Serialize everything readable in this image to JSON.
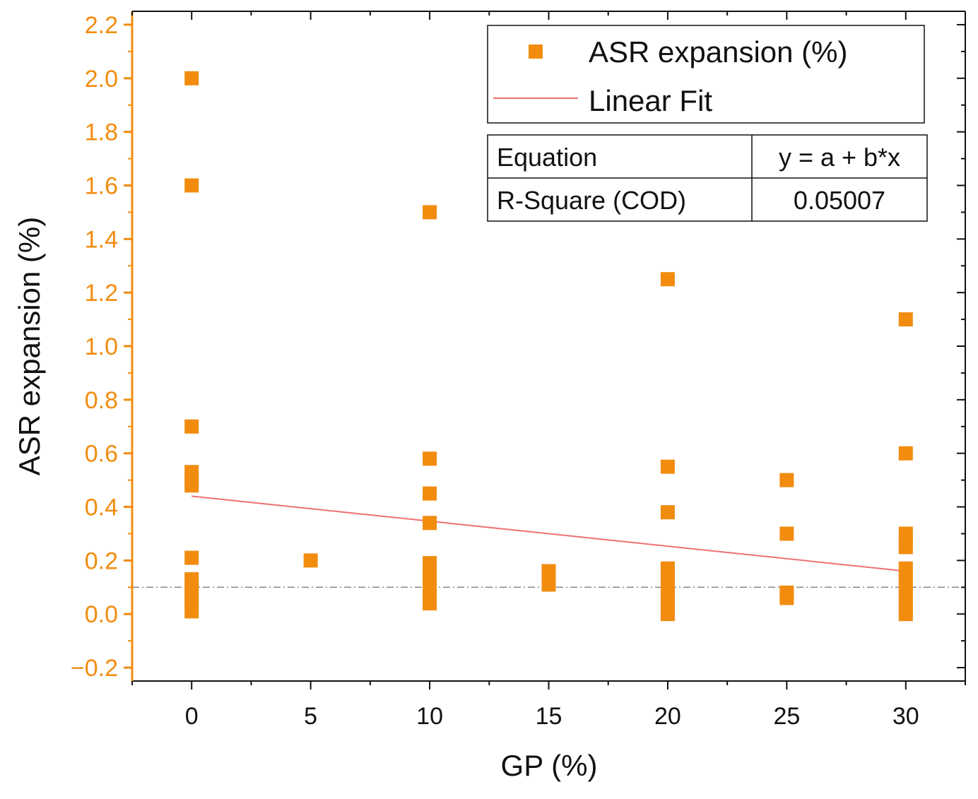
{
  "chart_data": {
    "type": "scatter",
    "title": "",
    "xlabel": "GP (%)",
    "ylabel": "ASR expansion (%)",
    "xlim": [
      -2.5,
      32.5
    ],
    "ylim": [
      -0.25,
      2.25
    ],
    "xticks": [
      0,
      5,
      10,
      15,
      20,
      25,
      30
    ],
    "xtick_labels": [
      "0",
      "5",
      "10",
      "15",
      "20",
      "25",
      "30"
    ],
    "yticks": [
      -0.2,
      0.0,
      0.2,
      0.4,
      0.6,
      0.8,
      1.0,
      1.2,
      1.4,
      1.6,
      1.8,
      2.0,
      2.2
    ],
    "ytick_labels": [
      "−0.2",
      "0.0",
      "0.2",
      "0.4",
      "0.6",
      "0.8",
      "1.0",
      "1.2",
      "1.4",
      "1.6",
      "1.8",
      "2.0",
      "2.2"
    ],
    "series": [
      {
        "name": "ASR expansion (%)",
        "marker": "square",
        "color": "#F28C0F",
        "points": [
          [
            0,
            2.0
          ],
          [
            0,
            1.6
          ],
          [
            0,
            0.7
          ],
          [
            0,
            0.53
          ],
          [
            0,
            0.5
          ],
          [
            0,
            0.48
          ],
          [
            0,
            0.21
          ],
          [
            0,
            0.13
          ],
          [
            0,
            0.1
          ],
          [
            0,
            0.07
          ],
          [
            0,
            0.04
          ],
          [
            0,
            0.01
          ],
          [
            5,
            0.2
          ],
          [
            10,
            1.5
          ],
          [
            10,
            0.58
          ],
          [
            10,
            0.45
          ],
          [
            10,
            0.34
          ],
          [
            10,
            0.19
          ],
          [
            10,
            0.16
          ],
          [
            10,
            0.13
          ],
          [
            10,
            0.1
          ],
          [
            10,
            0.07
          ],
          [
            10,
            0.04
          ],
          [
            15,
            0.16
          ],
          [
            15,
            0.13
          ],
          [
            15,
            0.11
          ],
          [
            20,
            1.25
          ],
          [
            20,
            0.55
          ],
          [
            20,
            0.38
          ],
          [
            20,
            0.17
          ],
          [
            20,
            0.14
          ],
          [
            20,
            0.11
          ],
          [
            20,
            0.08
          ],
          [
            20,
            0.05
          ],
          [
            20,
            0.02
          ],
          [
            20,
            0.0
          ],
          [
            25,
            0.5
          ],
          [
            25,
            0.3
          ],
          [
            25,
            0.08
          ],
          [
            25,
            0.06
          ],
          [
            30,
            1.1
          ],
          [
            30,
            0.6
          ],
          [
            30,
            0.3
          ],
          [
            30,
            0.27
          ],
          [
            30,
            0.25
          ],
          [
            30,
            0.17
          ],
          [
            30,
            0.14
          ],
          [
            30,
            0.11
          ],
          [
            30,
            0.08
          ],
          [
            30,
            0.05
          ],
          [
            30,
            0.02
          ],
          [
            30,
            0.0
          ]
        ]
      },
      {
        "name": "Linear Fit",
        "color": "#F07070",
        "x": [
          0,
          30
        ],
        "y": [
          0.44,
          0.16
        ]
      }
    ],
    "reference_line": {
      "y": 0.1,
      "style": "dash-dot",
      "color": "#888888"
    },
    "legend": {
      "placement": "top-right",
      "entries": [
        "ASR expansion (%)",
        "Linear Fit"
      ]
    },
    "fit_table": {
      "rows": [
        {
          "label": "Equation",
          "value": "y = a + b*x"
        },
        {
          "label": "R-Square (COD)",
          "value": "0.05007"
        }
      ]
    },
    "colors": {
      "axis_left": "#F28C0F",
      "axis_other": "#111111",
      "marker": "#F28C0F",
      "fit_line": "#F07070"
    }
  }
}
